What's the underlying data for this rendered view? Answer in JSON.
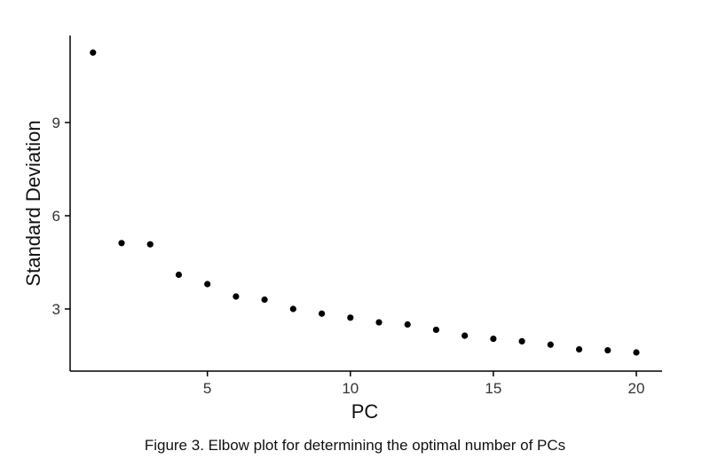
{
  "chart_data": {
    "type": "scatter",
    "xlabel": "PC",
    "ylabel": "Standard Deviation",
    "xlim": [
      0.2,
      20.9
    ],
    "ylim": [
      1.0,
      11.8
    ],
    "xticks": [
      5,
      10,
      15,
      20
    ],
    "yticks": [
      3,
      6,
      9
    ],
    "grid": false,
    "point_color": "#000000",
    "x": [
      1,
      2,
      3,
      4,
      5,
      6,
      7,
      8,
      9,
      10,
      11,
      12,
      13,
      14,
      15,
      16,
      17,
      18,
      19,
      20
    ],
    "y": [
      11.25,
      5.12,
      5.08,
      4.1,
      3.8,
      3.4,
      3.3,
      3.0,
      2.85,
      2.72,
      2.57,
      2.5,
      2.33,
      2.14,
      2.04,
      1.96,
      1.85,
      1.7,
      1.67,
      1.6
    ]
  },
  "caption": "Figure 3. Elbow plot for determining the optimal number of PCs"
}
